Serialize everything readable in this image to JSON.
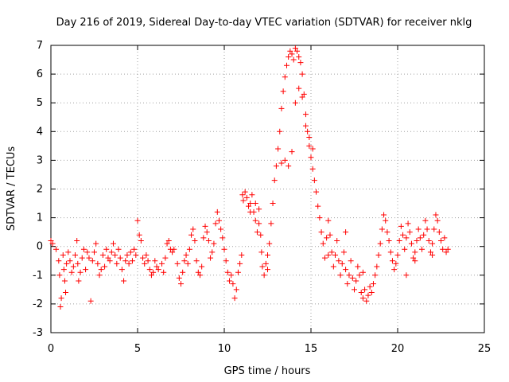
{
  "chart_data": {
    "type": "scatter",
    "title": "Day 216 of 2019, Sidereal Day-to-day VTEC variation (SDTVAR) for receiver nklg",
    "xlabel": "GPS time / hours",
    "ylabel": "SDTVAR / TECUs",
    "xlim": [
      0,
      25
    ],
    "ylim": [
      -3,
      7
    ],
    "xticks": [
      "0",
      "5",
      "10",
      "15",
      "20",
      "25"
    ],
    "yticks": [
      "-3",
      "-2",
      "-1",
      "0",
      "1",
      "2",
      "3",
      "4",
      "5",
      "6",
      "7"
    ],
    "grid": true,
    "marker": "+",
    "series": [
      {
        "name": "SDTVAR",
        "color": "#ff0000",
        "points": [
          [
            0.0,
            0.2
          ],
          [
            0.1,
            0.1
          ],
          [
            0.3,
            -0.1
          ],
          [
            0.45,
            -0.5
          ],
          [
            0.5,
            -1.0
          ],
          [
            0.55,
            -2.1
          ],
          [
            0.6,
            -1.8
          ],
          [
            0.7,
            -0.3
          ],
          [
            0.75,
            -0.8
          ],
          [
            0.8,
            -1.2
          ],
          [
            0.85,
            -1.6
          ],
          [
            0.9,
            -0.6
          ],
          [
            1.0,
            -0.2
          ],
          [
            1.1,
            -0.5
          ],
          [
            1.2,
            -0.9
          ],
          [
            1.3,
            -0.7
          ],
          [
            1.4,
            -0.3
          ],
          [
            1.5,
            0.2
          ],
          [
            1.55,
            -0.6
          ],
          [
            1.6,
            -1.2
          ],
          [
            1.7,
            -0.9
          ],
          [
            1.8,
            -0.4
          ],
          [
            1.9,
            -0.1
          ],
          [
            2.0,
            -0.8
          ],
          [
            2.1,
            -0.2
          ],
          [
            2.2,
            -0.4
          ],
          [
            2.3,
            -1.9
          ],
          [
            2.4,
            -0.5
          ],
          [
            2.5,
            -0.2
          ],
          [
            2.6,
            0.1
          ],
          [
            2.7,
            -0.6
          ],
          [
            2.8,
            -1.0
          ],
          [
            2.9,
            -0.8
          ],
          [
            3.0,
            -0.3
          ],
          [
            3.1,
            -0.7
          ],
          [
            3.2,
            -0.1
          ],
          [
            3.3,
            -0.4
          ],
          [
            3.4,
            -0.5
          ],
          [
            3.5,
            -0.2
          ],
          [
            3.6,
            0.1
          ],
          [
            3.7,
            -0.3
          ],
          [
            3.8,
            -0.6
          ],
          [
            3.9,
            -0.1
          ],
          [
            4.0,
            -0.4
          ],
          [
            4.1,
            -0.8
          ],
          [
            4.2,
            -1.2
          ],
          [
            4.3,
            -0.5
          ],
          [
            4.4,
            -0.3
          ],
          [
            4.5,
            -0.6
          ],
          [
            4.6,
            -0.2
          ],
          [
            4.7,
            -0.5
          ],
          [
            4.8,
            -0.1
          ],
          [
            4.9,
            -0.3
          ],
          [
            5.0,
            0.9
          ],
          [
            5.1,
            0.4
          ],
          [
            5.2,
            0.2
          ],
          [
            5.3,
            -0.4
          ],
          [
            5.4,
            -0.6
          ],
          [
            5.5,
            -0.3
          ],
          [
            5.6,
            -0.5
          ],
          [
            5.7,
            -0.8
          ],
          [
            5.8,
            -1.0
          ],
          [
            5.9,
            -0.9
          ],
          [
            6.0,
            -0.5
          ],
          [
            6.1,
            -0.7
          ],
          [
            6.2,
            -0.8
          ],
          [
            6.4,
            -0.6
          ],
          [
            6.5,
            -0.9
          ],
          [
            6.6,
            -0.4
          ],
          [
            6.7,
            0.1
          ],
          [
            6.8,
            0.2
          ],
          [
            6.9,
            -0.1
          ],
          [
            7.0,
            -0.2
          ],
          [
            7.1,
            -0.1
          ],
          [
            7.3,
            -0.6
          ],
          [
            7.4,
            -1.1
          ],
          [
            7.5,
            -1.3
          ],
          [
            7.6,
            -0.9
          ],
          [
            7.7,
            -0.5
          ],
          [
            7.8,
            -0.3
          ],
          [
            7.9,
            -0.6
          ],
          [
            8.0,
            -0.1
          ],
          [
            8.1,
            0.4
          ],
          [
            8.2,
            0.6
          ],
          [
            8.3,
            0.2
          ],
          [
            8.4,
            -0.5
          ],
          [
            8.5,
            -0.9
          ],
          [
            8.6,
            -1.0
          ],
          [
            8.7,
            -0.7
          ],
          [
            8.8,
            0.3
          ],
          [
            8.9,
            0.7
          ],
          [
            9.0,
            0.5
          ],
          [
            9.1,
            0.2
          ],
          [
            9.2,
            -0.4
          ],
          [
            9.3,
            -0.2
          ],
          [
            9.4,
            0.1
          ],
          [
            9.5,
            0.8
          ],
          [
            9.6,
            1.2
          ],
          [
            9.7,
            0.9
          ],
          [
            9.8,
            0.6
          ],
          [
            9.9,
            0.3
          ],
          [
            10.0,
            -0.1
          ],
          [
            10.1,
            -0.5
          ],
          [
            10.2,
            -0.9
          ],
          [
            10.3,
            -1.2
          ],
          [
            10.4,
            -1.0
          ],
          [
            10.5,
            -1.3
          ],
          [
            10.6,
            -1.8
          ],
          [
            10.7,
            -1.5
          ],
          [
            10.8,
            -0.9
          ],
          [
            10.9,
            -0.6
          ],
          [
            11.0,
            -0.3
          ],
          [
            11.05,
            1.8
          ],
          [
            11.1,
            1.6
          ],
          [
            11.2,
            1.9
          ],
          [
            11.3,
            1.7
          ],
          [
            11.4,
            1.4
          ],
          [
            11.5,
            1.5
          ],
          [
            11.6,
            1.8
          ],
          [
            11.7,
            1.2
          ],
          [
            11.8,
            0.9
          ],
          [
            11.9,
            0.5
          ],
          [
            12.0,
            1.3
          ],
          [
            12.1,
            0.4
          ],
          [
            12.15,
            -0.2
          ],
          [
            12.2,
            -0.7
          ],
          [
            12.3,
            -1.0
          ],
          [
            12.4,
            -0.6
          ],
          [
            12.5,
            -0.3
          ],
          [
            12.6,
            0.1
          ],
          [
            12.7,
            0.8
          ],
          [
            12.8,
            1.5
          ],
          [
            12.9,
            2.3
          ],
          [
            13.0,
            2.8
          ],
          [
            13.1,
            3.4
          ],
          [
            13.2,
            4.0
          ],
          [
            13.3,
            4.8
          ],
          [
            13.4,
            5.4
          ],
          [
            13.5,
            5.9
          ],
          [
            13.6,
            6.3
          ],
          [
            13.7,
            6.6
          ],
          [
            13.8,
            6.8
          ],
          [
            13.9,
            6.7
          ],
          [
            14.0,
            6.5
          ],
          [
            14.1,
            6.9
          ],
          [
            14.2,
            6.8
          ],
          [
            14.3,
            6.6
          ],
          [
            14.4,
            6.4
          ],
          [
            14.5,
            6.0
          ],
          [
            14.6,
            5.3
          ],
          [
            14.7,
            4.6
          ],
          [
            14.8,
            4.0
          ],
          [
            14.9,
            3.5
          ],
          [
            15.0,
            3.1
          ],
          [
            15.1,
            2.7
          ],
          [
            15.2,
            2.3
          ],
          [
            15.3,
            1.9
          ],
          [
            15.4,
            1.4
          ],
          [
            15.5,
            1.0
          ],
          [
            15.6,
            0.5
          ],
          [
            15.7,
            0.1
          ],
          [
            15.8,
            -0.4
          ],
          [
            15.9,
            0.3
          ],
          [
            16.0,
            0.9
          ],
          [
            16.1,
            0.4
          ],
          [
            16.2,
            -0.2
          ],
          [
            16.3,
            -0.7
          ],
          [
            16.4,
            -0.3
          ],
          [
            16.5,
            0.2
          ],
          [
            16.6,
            -0.5
          ],
          [
            16.7,
            -1.0
          ],
          [
            16.8,
            -0.6
          ],
          [
            16.9,
            -0.2
          ],
          [
            17.0,
            -0.8
          ],
          [
            17.1,
            -1.3
          ],
          [
            17.2,
            -1.0
          ],
          [
            17.3,
            -0.5
          ],
          [
            17.4,
            -1.1
          ],
          [
            17.5,
            -1.5
          ],
          [
            17.6,
            -1.2
          ],
          [
            17.7,
            -0.7
          ],
          [
            17.8,
            -1.0
          ],
          [
            17.9,
            -1.6
          ],
          [
            18.0,
            -1.8
          ],
          [
            18.1,
            -1.5
          ],
          [
            18.2,
            -1.9
          ],
          [
            18.3,
            -1.7
          ],
          [
            18.4,
            -1.4
          ],
          [
            18.5,
            -1.6
          ],
          [
            18.6,
            -1.3
          ],
          [
            18.7,
            -1.0
          ],
          [
            18.8,
            -0.7
          ],
          [
            18.9,
            -0.3
          ],
          [
            19.0,
            0.1
          ],
          [
            19.1,
            0.6
          ],
          [
            19.2,
            1.1
          ],
          [
            19.3,
            0.9
          ],
          [
            19.4,
            0.5
          ],
          [
            19.5,
            0.2
          ],
          [
            19.6,
            -0.2
          ],
          [
            19.7,
            -0.5
          ],
          [
            19.8,
            -0.8
          ],
          [
            19.9,
            -0.6
          ],
          [
            20.0,
            -0.3
          ],
          [
            20.1,
            0.2
          ],
          [
            20.2,
            0.7
          ],
          [
            20.3,
            0.4
          ],
          [
            20.4,
            -0.1
          ],
          [
            20.5,
            0.3
          ],
          [
            20.6,
            0.8
          ],
          [
            20.7,
            0.5
          ],
          [
            20.8,
            0.1
          ],
          [
            20.9,
            -0.4
          ],
          [
            21.0,
            -0.2
          ],
          [
            21.1,
            0.2
          ],
          [
            21.2,
            0.6
          ],
          [
            21.3,
            0.3
          ],
          [
            21.4,
            -0.1
          ],
          [
            21.5,
            0.4
          ],
          [
            21.6,
            0.9
          ],
          [
            21.7,
            0.6
          ],
          [
            21.8,
            0.2
          ],
          [
            21.9,
            -0.2
          ],
          [
            22.0,
            0.1
          ],
          [
            22.1,
            0.6
          ],
          [
            22.2,
            1.1
          ],
          [
            22.3,
            0.9
          ],
          [
            22.4,
            0.5
          ],
          [
            22.5,
            0.2
          ],
          [
            22.6,
            -0.1
          ],
          [
            22.7,
            0.3
          ],
          [
            22.8,
            -0.2
          ],
          [
            22.9,
            -0.1
          ],
          [
            13.3,
            2.9
          ],
          [
            13.5,
            3.0
          ],
          [
            13.7,
            2.8
          ],
          [
            13.9,
            3.3
          ],
          [
            14.1,
            5.0
          ],
          [
            14.3,
            5.5
          ],
          [
            14.5,
            5.2
          ],
          [
            14.7,
            4.2
          ],
          [
            14.9,
            3.8
          ],
          [
            15.1,
            3.4
          ],
          [
            11.5,
            1.2
          ],
          [
            11.8,
            1.5
          ],
          [
            12.0,
            0.8
          ],
          [
            12.5,
            -0.8
          ],
          [
            16.0,
            -0.3
          ],
          [
            17.0,
            0.5
          ],
          [
            18.0,
            -0.9
          ],
          [
            20.5,
            -1.0
          ],
          [
            21.0,
            -0.5
          ],
          [
            22.0,
            -0.3
          ]
        ]
      }
    ]
  }
}
